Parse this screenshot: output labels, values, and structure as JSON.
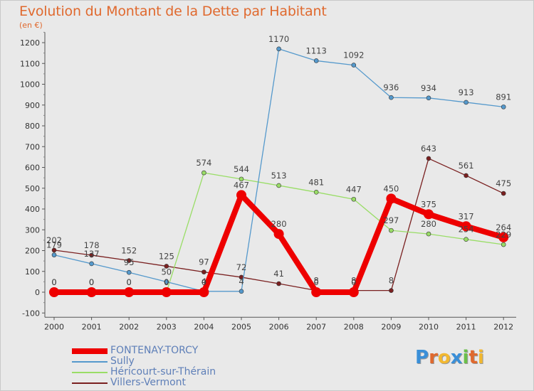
{
  "header": {
    "title": "Evolution du Montant de la Dette par Habitant",
    "subtitle": "(en €)"
  },
  "chart_data": {
    "type": "line",
    "x": [
      "2000",
      "2001",
      "2002",
      "2003",
      "2004",
      "2005",
      "2006",
      "2007",
      "2008",
      "2009",
      "2010",
      "2011",
      "2012"
    ],
    "ylim": [
      -100,
      1250
    ],
    "yticks": [
      "-100",
      "0",
      "100",
      "200",
      "300",
      "400",
      "500",
      "600",
      "700",
      "800",
      "900",
      "1000",
      "1100",
      "1200"
    ],
    "grid": false,
    "legend_position": "bottom-left",
    "series": [
      {
        "name": "Villers-Vermont",
        "color": "#7a2020",
        "values": [
          202,
          178,
          152,
          125,
          97,
          72,
          41,
          8,
          8,
          8,
          643,
          561,
          475
        ],
        "labels": [
          "202",
          "178",
          "152",
          "125",
          "97",
          "72",
          "41",
          "8",
          "8",
          "8",
          "643",
          "561",
          "475"
        ]
      },
      {
        "name": "Héricourt-sur-Thérain",
        "color": "#99dd66",
        "values": [
          0,
          0,
          0,
          0,
          574,
          544,
          513,
          481,
          447,
          297,
          280,
          254,
          229
        ],
        "labels": [
          "0",
          "0",
          "0",
          "0",
          "574",
          "544",
          "513",
          "481",
          "447",
          "297",
          "280",
          "254",
          "229"
        ]
      },
      {
        "name": "Sully",
        "color": "#5599cc",
        "values": [
          179,
          137,
          95,
          50,
          4,
          4,
          1170,
          1113,
          1092,
          936,
          934,
          913,
          891
        ],
        "labels": [
          "179",
          "137",
          "95",
          "50",
          "4",
          "4",
          "1170",
          "1113",
          "1092",
          "936",
          "934",
          "913",
          "891"
        ]
      },
      {
        "name": "FONTENAY-TORCY",
        "color": "#ee0000",
        "values": [
          0,
          0,
          0,
          0,
          0,
          467,
          280,
          0,
          0,
          450,
          375,
          317,
          264
        ],
        "labels": [
          "0",
          "0",
          "0",
          "0",
          "0",
          "467",
          "280",
          "0",
          "0",
          "450",
          "375",
          "317",
          "264"
        ]
      }
    ]
  },
  "legend": {
    "items": [
      {
        "label": "FONTENAY-TORCY",
        "color": "#ee0000"
      },
      {
        "label": "Sully",
        "color": "#5599cc"
      },
      {
        "label": "Héricourt-sur-Thérain",
        "color": "#99dd66"
      },
      {
        "label": "Villers-Vermont",
        "color": "#7a2020"
      }
    ]
  },
  "logo": {
    "letters": [
      "P",
      "r",
      "o",
      "x",
      "i",
      "t",
      "i"
    ],
    "colors": [
      "#3a8fd8",
      "#e0692e",
      "#f2b830",
      "#3a8fd8",
      "#6cc04a",
      "#e0692e",
      "#f2b830"
    ]
  }
}
